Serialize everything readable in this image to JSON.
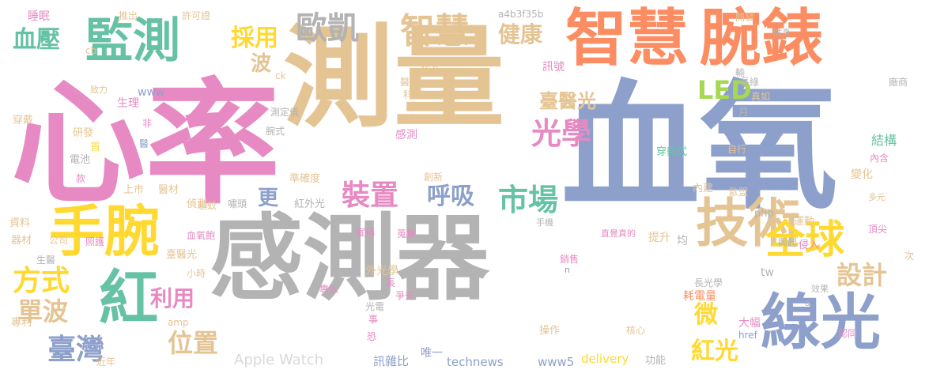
{
  "colors": {
    "gray": "#b3b3b3",
    "tan": "#e5c494",
    "blue": "#8da0cb",
    "pink": "#e78ac3",
    "green": "#66c2a5",
    "orange": "#fc8d62",
    "yellow": "#ffd92f",
    "lime": "#a6d854"
  },
  "words": [
    "感測器",
    "血氧",
    "心率",
    "測量",
    "智慧",
    "腕錶",
    "技術",
    "手腕",
    "監測",
    "線光",
    "紅",
    "全球",
    "方式",
    "臺灣",
    "位置",
    "智慧",
    "健康",
    "歐凱",
    "裝置",
    "市場",
    "呼吸",
    "光學",
    "採用",
    "血壓",
    "設計",
    "單波",
    "利用",
    "微",
    "紅光",
    "LED",
    "臺醫光",
    "更",
    "波",
    "Apple Watch",
    "technews",
    "www5",
    "delivery",
    "a4b3f35b",
    "穿戴式",
    "結構",
    "內建",
    "自行",
    "變化",
    "歐盟",
    "長綠",
    "開發",
    "次",
    "頂尖",
    "侵入",
    "運動",
    "多元",
    "內含",
    "興起",
    "提升",
    "直覺真的",
    "銷售",
    "操作",
    "核心",
    "唯一",
    "訊雜比",
    "大幅",
    "耗電量",
    "長光學",
    "效果",
    "均",
    "外光學",
    "專家",
    "長",
    "爭先",
    "恐",
    "事",
    "光電",
    "首",
    "醫",
    "研發",
    "睡眠",
    "推出",
    "許可證",
    "電池",
    "款",
    "器材",
    "資料",
    "生醫",
    "專利",
    "公司",
    "照護",
    "小時",
    "血氧飽",
    "偵測",
    "驅蚊",
    "嘯頭",
    "醫材",
    "上市",
    "準確度",
    "紅外光",
    "宣稱",
    "蒐集",
    "手機",
    "感測",
    "狀況",
    "醫療",
    "科技",
    "外光",
    "訊號",
    "生理",
    "致力",
    "穿戴",
    "www",
    "ck",
    "cb",
    "amp",
    "tw",
    "php",
    "href",
    "n",
    "a",
    "月",
    "腕式",
    "測定儀",
    "創新",
    "臺醫光",
    "功能",
    "近年",
    "認同",
    "貼身",
    "廠商",
    "真如",
    "輸",
    "非"
  ]
}
